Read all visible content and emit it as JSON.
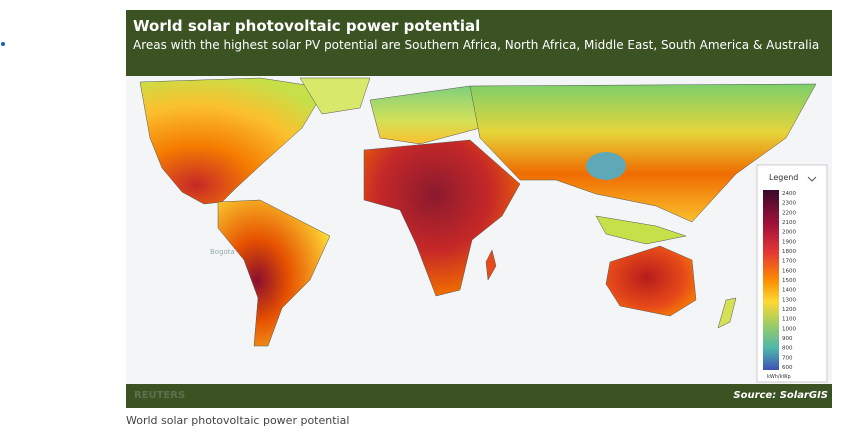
{
  "header": {
    "title": "World solar photovoltaic power potential",
    "subtitle": "Areas with the highest solar PV potential are Southern Africa, North Africa, Middle East, South America & Australia"
  },
  "map_labels": [
    "Bogota"
  ],
  "legend": {
    "title": "Legend",
    "labels": [
      2400,
      2300,
      2200,
      2100,
      2000,
      1900,
      1800,
      1700,
      1600,
      1500,
      1400,
      1300,
      1200,
      1100,
      1000,
      900,
      800,
      700,
      600
    ],
    "unit": "kWh/kWp"
  },
  "footer": {
    "watermark": "REUTERS",
    "source": "Source: SolarGIS"
  },
  "caption": "World solar photovoltaic power potential"
}
